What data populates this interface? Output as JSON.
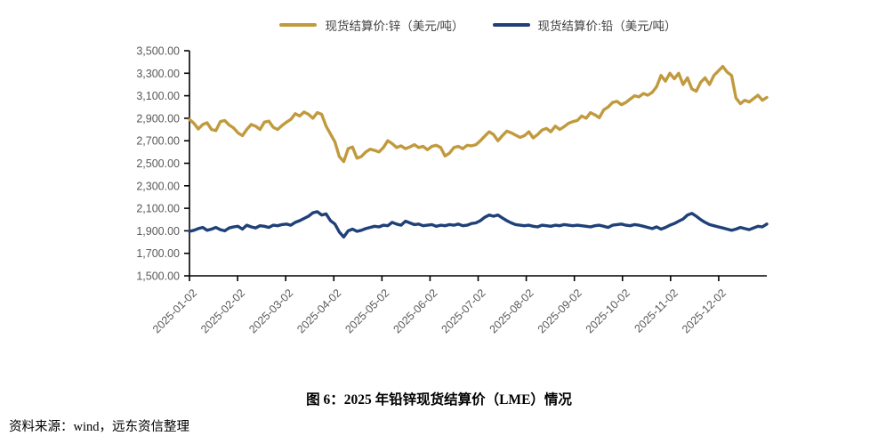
{
  "figure": {
    "caption": "图 6：2025 年铅锌现货结算价（LME）情况",
    "source": "资料来源：wind，远东资信整理"
  },
  "chart_data": {
    "type": "line",
    "title": "图 6：2025 年铅锌现货结算价（LME）情况",
    "xlabel": "",
    "ylabel": "",
    "ylim": [
      1500,
      3500
    ],
    "y_step": 200,
    "grid": false,
    "legend_position": "top",
    "axis_color": "#000000",
    "tick_label_color": "#595959",
    "y_tick_labels": [
      "1,500.00",
      "1,700.00",
      "1,900.00",
      "2,100.00",
      "2,300.00",
      "2,500.00",
      "2,700.00",
      "2,900.00",
      "3,100.00",
      "3,300.00",
      "3,500.00"
    ],
    "x_tick_labels": [
      "2025-01-02",
      "2025-02-02",
      "2025-03-02",
      "2025-04-02",
      "2025-05-02",
      "2025-06-02",
      "2025-07-02",
      "2025-08-02",
      "2025-09-02",
      "2025-10-02",
      "2025-11-02",
      "2025-12-02"
    ],
    "series": [
      {
        "name": "现货结算价:锌（美元/吨）",
        "color": "#C19A3E",
        "values": [
          2890,
          2855,
          2805,
          2845,
          2860,
          2800,
          2790,
          2870,
          2880,
          2840,
          2815,
          2770,
          2745,
          2800,
          2845,
          2830,
          2800,
          2865,
          2875,
          2820,
          2800,
          2835,
          2865,
          2890,
          2940,
          2920,
          2955,
          2935,
          2900,
          2950,
          2935,
          2830,
          2760,
          2690,
          2560,
          2515,
          2630,
          2645,
          2545,
          2560,
          2600,
          2625,
          2615,
          2600,
          2640,
          2700,
          2675,
          2640,
          2655,
          2630,
          2645,
          2665,
          2640,
          2650,
          2620,
          2650,
          2660,
          2640,
          2565,
          2590,
          2640,
          2650,
          2630,
          2660,
          2655,
          2665,
          2700,
          2740,
          2780,
          2755,
          2700,
          2745,
          2785,
          2770,
          2750,
          2730,
          2745,
          2780,
          2725,
          2755,
          2795,
          2810,
          2780,
          2830,
          2800,
          2825,
          2855,
          2870,
          2880,
          2920,
          2900,
          2950,
          2930,
          2905,
          2975,
          3000,
          3040,
          3050,
          3020,
          3040,
          3070,
          3100,
          3090,
          3120,
          3105,
          3130,
          3180,
          3280,
          3230,
          3300,
          3250,
          3300,
          3200,
          3260,
          3160,
          3140,
          3220,
          3260,
          3200,
          3280,
          3320,
          3360,
          3310,
          3280,
          3080,
          3030,
          3060,
          3045,
          3075,
          3105,
          3060,
          3085
        ]
      },
      {
        "name": "现货结算价:铅（美元/吨）",
        "color": "#1F4078",
        "values": [
          1895,
          1905,
          1920,
          1930,
          1905,
          1915,
          1930,
          1910,
          1900,
          1925,
          1935,
          1940,
          1915,
          1950,
          1935,
          1925,
          1945,
          1940,
          1930,
          1950,
          1945,
          1955,
          1960,
          1950,
          1975,
          1990,
          2010,
          2030,
          2060,
          2070,
          2040,
          2050,
          1990,
          1960,
          1890,
          1845,
          1900,
          1915,
          1895,
          1905,
          1920,
          1930,
          1940,
          1935,
          1950,
          1945,
          1975,
          1960,
          1950,
          1985,
          1970,
          1955,
          1960,
          1945,
          1950,
          1955,
          1940,
          1950,
          1945,
          1955,
          1950,
          1960,
          1945,
          1950,
          1965,
          1970,
          1990,
          2020,
          2040,
          2030,
          2040,
          2015,
          1990,
          1970,
          1955,
          1950,
          1945,
          1950,
          1940,
          1935,
          1950,
          1945,
          1940,
          1950,
          1945,
          1955,
          1950,
          1945,
          1950,
          1945,
          1940,
          1935,
          1945,
          1950,
          1940,
          1930,
          1950,
          1955,
          1960,
          1950,
          1945,
          1955,
          1950,
          1940,
          1930,
          1920,
          1935,
          1915,
          1930,
          1950,
          1965,
          1985,
          2005,
          2040,
          2055,
          2030,
          2000,
          1975,
          1955,
          1945,
          1935,
          1925,
          1915,
          1905,
          1915,
          1930,
          1920,
          1910,
          1925,
          1940,
          1935,
          1960
        ]
      }
    ]
  }
}
